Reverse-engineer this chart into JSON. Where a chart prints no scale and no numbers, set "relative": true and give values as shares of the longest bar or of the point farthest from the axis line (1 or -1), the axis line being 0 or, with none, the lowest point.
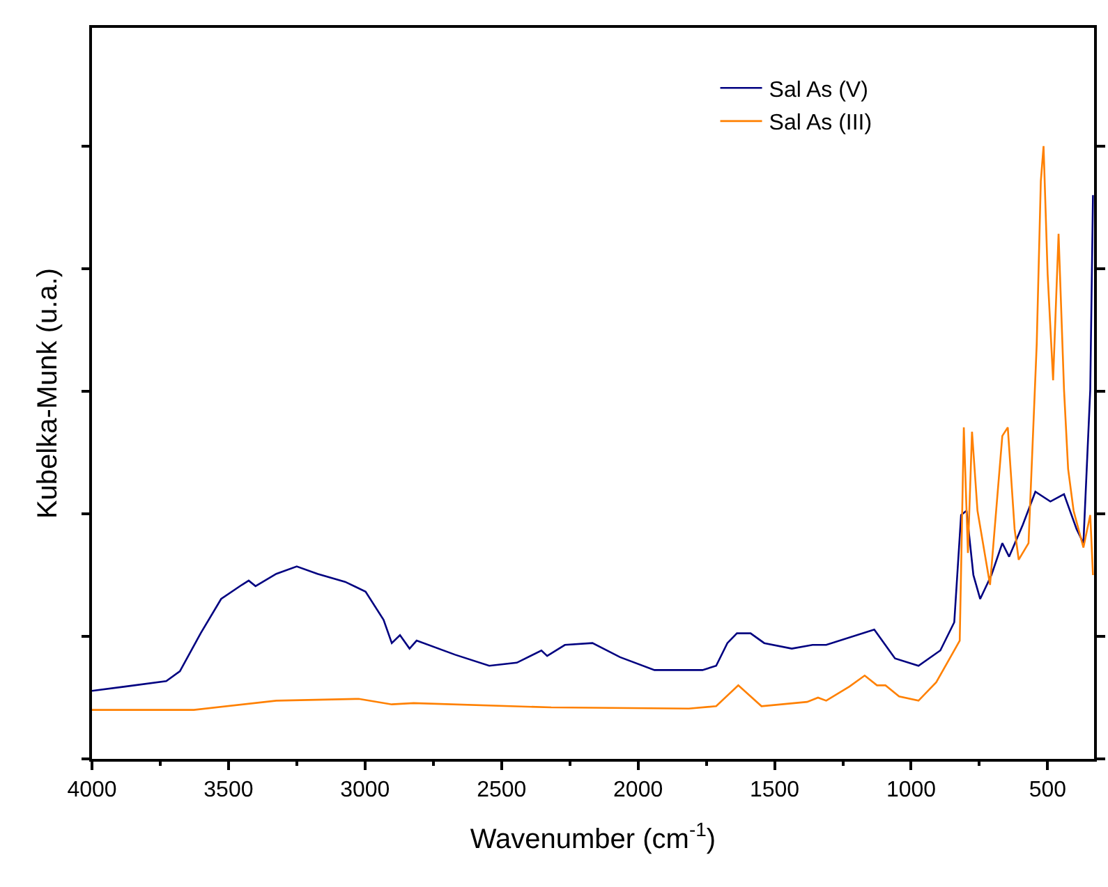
{
  "chart_data": {
    "type": "line",
    "xlabel": "Wavenumber (cm$^{-1}$)",
    "ylabel": "Kubelka-Munk (u.a.)",
    "relative": true,
    "xlim": [
      4000,
      330
    ],
    "xticks": [
      4000,
      3500,
      3000,
      2500,
      2000,
      1500,
      1000,
      500
    ],
    "tick_labels": "x",
    "legend": "top right",
    "marker": "none",
    "line_style": "solid",
    "series": [
      {
        "name": "Sal As (V)",
        "color": "#000080",
        "x": [
          4000,
          3879,
          3728,
          3678,
          3602,
          3527,
          3451,
          3426,
          3401,
          3325,
          3250,
          3174,
          3073,
          2998,
          2932,
          2902,
          2872,
          2837,
          2811,
          2670,
          2545,
          2444,
          2354,
          2333,
          2268,
          2167,
          2066,
          1940,
          1764,
          1714,
          1673,
          1638,
          1588,
          1538,
          1437,
          1361,
          1311,
          1135,
          1059,
          973,
          893,
          842,
          817,
          797,
          772,
          747,
          706,
          666,
          641,
          591,
          545,
          490,
          440,
          394,
          369,
          344,
          334
        ],
        "values": [
          0.111,
          0.118,
          0.127,
          0.143,
          0.205,
          0.261,
          0.284,
          0.291,
          0.282,
          0.302,
          0.314,
          0.302,
          0.289,
          0.273,
          0.227,
          0.189,
          0.202,
          0.18,
          0.193,
          0.17,
          0.152,
          0.157,
          0.177,
          0.168,
          0.186,
          0.189,
          0.166,
          0.145,
          0.145,
          0.152,
          0.189,
          0.205,
          0.205,
          0.189,
          0.18,
          0.186,
          0.186,
          0.211,
          0.164,
          0.152,
          0.177,
          0.223,
          0.398,
          0.405,
          0.3,
          0.261,
          0.3,
          0.352,
          0.33,
          0.382,
          0.436,
          0.42,
          0.432,
          0.375,
          0.352,
          0.602,
          0.92
        ]
      },
      {
        "name": "Sal As (III)",
        "color": "#ff8000",
        "x": [
          4000,
          3627,
          3325,
          3023,
          2902,
          2822,
          2318,
          1814,
          1714,
          1633,
          1548,
          1381,
          1341,
          1311,
          1226,
          1170,
          1125,
          1094,
          1044,
          973,
          908,
          842,
          822,
          807,
          792,
          777,
          757,
          711,
          666,
          646,
          621,
          606,
          570,
          540,
          525,
          515,
          500,
          480,
          460,
          440,
          425,
          405,
          369,
          344,
          334
        ],
        "values": [
          0.08,
          0.08,
          0.095,
          0.098,
          0.089,
          0.091,
          0.084,
          0.082,
          0.086,
          0.12,
          0.086,
          0.093,
          0.1,
          0.095,
          0.118,
          0.136,
          0.12,
          0.12,
          0.102,
          0.095,
          0.125,
          0.177,
          0.193,
          0.541,
          0.336,
          0.534,
          0.405,
          0.284,
          0.527,
          0.541,
          0.375,
          0.325,
          0.352,
          0.677,
          0.943,
          1.0,
          0.791,
          0.618,
          0.857,
          0.602,
          0.473,
          0.405,
          0.345,
          0.398,
          0.3
        ]
      }
    ]
  }
}
